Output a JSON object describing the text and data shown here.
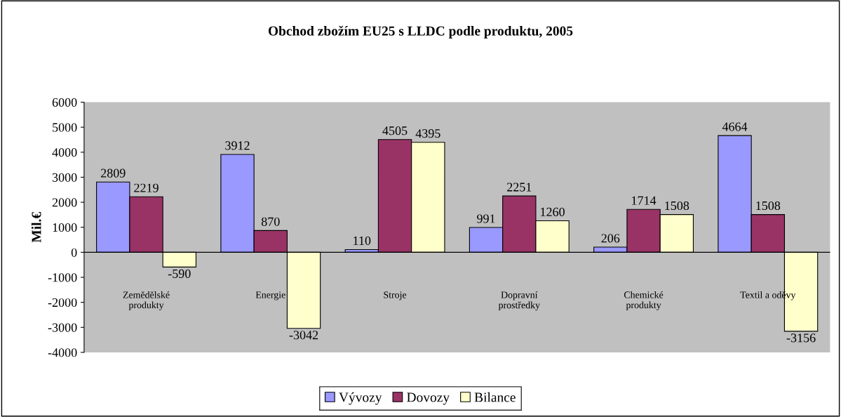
{
  "chart_data": {
    "type": "bar",
    "title": "Obchod zbožím EU25 s LLDC podle produktu, 2005",
    "ylabel": "Mil.€",
    "categories": [
      "Zemědělské\nprodukty",
      "Energie",
      "Stroje",
      "Dopravní\nprostředky",
      "Chemické\nprodukty",
      "Textil a oděvy"
    ],
    "series": [
      {
        "name": "Vývozy",
        "color": "#9999ff",
        "values": [
          2809,
          3912,
          110,
          991,
          206,
          4664
        ]
      },
      {
        "name": "Dovozy",
        "color": "#993366",
        "values": [
          2219,
          870,
          4505,
          2251,
          1714,
          1508
        ]
      },
      {
        "name": "Bilance",
        "color": "#ffffcc",
        "values": [
          -590,
          -3042,
          4395,
          1260,
          1508,
          -3156
        ]
      }
    ],
    "ylim": [
      -4000,
      6000
    ],
    "yticks": [
      -4000,
      -3000,
      -2000,
      -1000,
      0,
      1000,
      2000,
      3000,
      4000,
      5000,
      6000
    ],
    "ref_lines": [
      {
        "axis": "y",
        "value": 0,
        "color": "#000000"
      }
    ],
    "data_labels": true,
    "grid": false,
    "legend": "bottom"
  }
}
